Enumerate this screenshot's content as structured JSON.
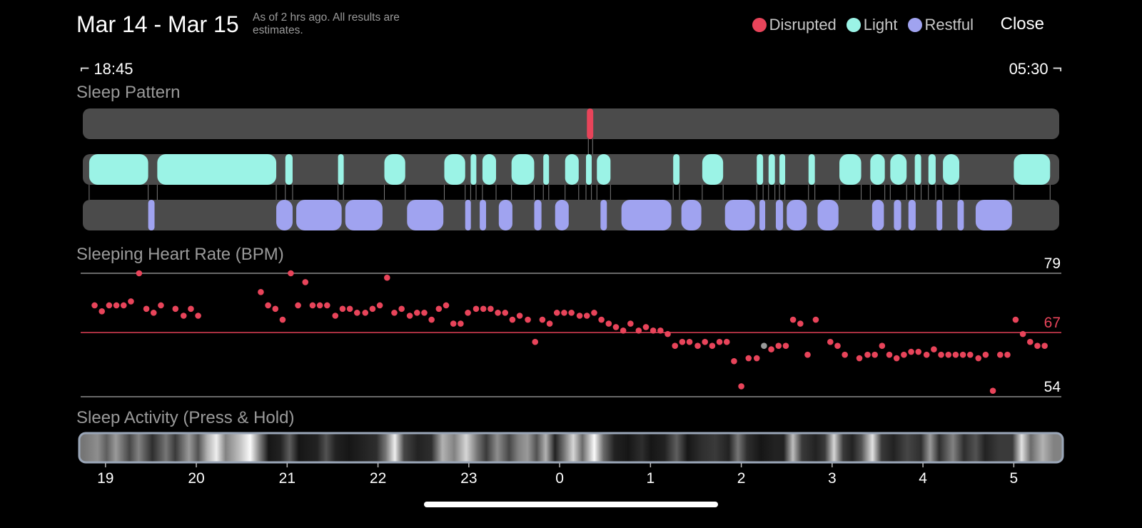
{
  "header": {
    "title": "Mar 14 - Mar 15",
    "subtitle": "As of 2 hrs ago. All results are estimates.",
    "close_label": "Close"
  },
  "legend": [
    {
      "label": "Disrupted",
      "color": "#e8445a"
    },
    {
      "label": "Light",
      "color": "#9bf3e6"
    },
    {
      "label": "Restful",
      "color": "#a0a3f0"
    }
  ],
  "time_range": {
    "start": "18:45",
    "end": "05:30"
  },
  "sections": {
    "sleep_pattern": "Sleep Pattern",
    "heart_rate": "Sleeping Heart Rate (BPM)",
    "activity": "Sleep Activity (Press & Hold)"
  },
  "colors": {
    "disrupted": "#e8445a",
    "light": "#9bf3e6",
    "restful": "#a0a3f0",
    "track": "#4b4b4b",
    "heart_point": "#e8445a",
    "selected_point": "#9a9a9a",
    "avg_line": "#d03b50"
  },
  "chart_data": {
    "type": "scatter",
    "title": "Sleeping Heart Rate (BPM)",
    "x_start_hour": 18.75,
    "x_end_hour": 29.5,
    "x_ticks": [
      "19",
      "20",
      "21",
      "22",
      "23",
      "0",
      "1",
      "2",
      "3",
      "4",
      "5"
    ],
    "x_tick_hours": [
      19,
      20,
      21,
      22,
      23,
      24,
      25,
      26,
      27,
      28,
      29
    ],
    "ylim": [
      54,
      79
    ],
    "reference_lines": [
      {
        "label": "79",
        "value": 79
      },
      {
        "label": "67",
        "value": 67,
        "role": "average"
      },
      {
        "label": "54",
        "value": 54
      }
    ],
    "selected_index": 82,
    "heart_rate": [
      [
        18.88,
        72.5
      ],
      [
        18.96,
        71.3
      ],
      [
        19.04,
        72.5
      ],
      [
        19.12,
        72.5
      ],
      [
        19.2,
        72.5
      ],
      [
        19.28,
        73.3
      ],
      [
        19.37,
        79
      ],
      [
        19.45,
        71.8
      ],
      [
        19.53,
        71
      ],
      [
        19.61,
        72.5
      ],
      [
        19.77,
        71.8
      ],
      [
        19.86,
        70.4
      ],
      [
        19.94,
        71.8
      ],
      [
        20.02,
        70.4
      ],
      [
        20.71,
        75.2
      ],
      [
        20.79,
        72.5
      ],
      [
        20.87,
        71.8
      ],
      [
        20.95,
        69.6
      ],
      [
        21.04,
        79
      ],
      [
        21.12,
        72.5
      ],
      [
        21.2,
        77.2
      ],
      [
        21.28,
        72.5
      ],
      [
        21.36,
        72.5
      ],
      [
        21.44,
        72.5
      ],
      [
        21.53,
        70.4
      ],
      [
        21.61,
        71.8
      ],
      [
        21.69,
        71.8
      ],
      [
        21.77,
        71
      ],
      [
        21.86,
        71
      ],
      [
        21.94,
        71.8
      ],
      [
        22.02,
        72.5
      ],
      [
        22.1,
        78.1
      ],
      [
        22.18,
        71
      ],
      [
        22.26,
        71.8
      ],
      [
        22.35,
        70.4
      ],
      [
        22.43,
        71
      ],
      [
        22.51,
        71
      ],
      [
        22.59,
        69.6
      ],
      [
        22.67,
        71.8
      ],
      [
        22.75,
        72.5
      ],
      [
        22.83,
        68.8
      ],
      [
        22.91,
        68.8
      ],
      [
        22.99,
        71
      ],
      [
        23.08,
        71.8
      ],
      [
        23.16,
        71.8
      ],
      [
        23.24,
        71.8
      ],
      [
        23.32,
        71
      ],
      [
        23.4,
        71
      ],
      [
        23.48,
        69.6
      ],
      [
        23.56,
        70.4
      ],
      [
        23.65,
        69.6
      ],
      [
        23.73,
        65.1
      ],
      [
        23.81,
        69.6
      ],
      [
        23.89,
        68.8
      ],
      [
        23.97,
        71
      ],
      [
        24.05,
        71
      ],
      [
        24.13,
        71
      ],
      [
        24.22,
        70.4
      ],
      [
        24.3,
        70.4
      ],
      [
        24.38,
        71
      ],
      [
        24.46,
        69.6
      ],
      [
        24.54,
        68.8
      ],
      [
        24.62,
        68.1
      ],
      [
        24.7,
        67.4
      ],
      [
        24.78,
        68.8
      ],
      [
        24.87,
        67.4
      ],
      [
        24.95,
        68.1
      ],
      [
        25.03,
        67.4
      ],
      [
        25.11,
        67.4
      ],
      [
        25.19,
        66.7
      ],
      [
        25.27,
        64.3
      ],
      [
        25.35,
        65.1
      ],
      [
        25.43,
        65.1
      ],
      [
        25.52,
        64.3
      ],
      [
        25.6,
        65.1
      ],
      [
        25.68,
        64.3
      ],
      [
        25.76,
        65.1
      ],
      [
        25.84,
        65.1
      ],
      [
        25.92,
        61.2
      ],
      [
        26.0,
        56.1
      ],
      [
        26.08,
        61.8
      ],
      [
        26.17,
        61.8
      ],
      [
        26.25,
        64.3
      ],
      [
        26.33,
        63.6
      ],
      [
        26.41,
        64.3
      ],
      [
        26.49,
        64.3
      ],
      [
        26.57,
        69.6
      ],
      [
        26.65,
        68.8
      ],
      [
        26.73,
        62.5
      ],
      [
        26.82,
        69.6
      ],
      [
        26.98,
        65.1
      ],
      [
        27.06,
        64.3
      ],
      [
        27.14,
        62.5
      ],
      [
        27.3,
        61.8
      ],
      [
        27.39,
        62.5
      ],
      [
        27.47,
        62.5
      ],
      [
        27.55,
        64.3
      ],
      [
        27.63,
        62.5
      ],
      [
        27.71,
        61.8
      ],
      [
        27.79,
        62.5
      ],
      [
        27.87,
        63.1
      ],
      [
        27.95,
        63.1
      ],
      [
        28.04,
        62.5
      ],
      [
        28.12,
        63.6
      ],
      [
        28.2,
        62.5
      ],
      [
        28.28,
        62.5
      ],
      [
        28.36,
        62.5
      ],
      [
        28.44,
        62.5
      ],
      [
        28.52,
        62.5
      ],
      [
        28.61,
        61.8
      ],
      [
        28.69,
        62.5
      ],
      [
        28.77,
        55.2
      ],
      [
        28.85,
        62.5
      ],
      [
        28.93,
        62.5
      ],
      [
        29.02,
        69.6
      ],
      [
        29.1,
        66.7
      ],
      [
        29.18,
        65.1
      ],
      [
        29.26,
        64.3
      ],
      [
        29.34,
        64.3
      ]
    ]
  },
  "sleep_pattern": {
    "disrupted": [
      [
        24.3,
        24.37
      ]
    ],
    "light": [
      [
        18.82,
        19.47
      ],
      [
        19.57,
        20.88
      ],
      [
        20.98,
        21.06
      ],
      [
        21.56,
        21.62
      ],
      [
        22.07,
        22.3
      ],
      [
        22.73,
        22.96
      ],
      [
        23.02,
        23.08
      ],
      [
        23.15,
        23.3
      ],
      [
        23.47,
        23.72
      ],
      [
        23.82,
        23.88
      ],
      [
        24.06,
        24.21
      ],
      [
        24.29,
        24.35
      ],
      [
        24.41,
        24.56
      ],
      [
        25.25,
        25.32
      ],
      [
        25.57,
        25.8
      ],
      [
        26.17,
        26.24
      ],
      [
        26.3,
        26.37
      ],
      [
        26.42,
        26.48
      ],
      [
        26.74,
        26.81
      ],
      [
        27.08,
        27.32
      ],
      [
        27.42,
        27.58
      ],
      [
        27.64,
        27.82
      ],
      [
        27.91,
        27.98
      ],
      [
        28.06,
        28.14
      ],
      [
        28.22,
        28.4
      ],
      [
        29.0,
        29.4
      ]
    ],
    "restful": [
      [
        19.47,
        19.54
      ],
      [
        20.88,
        21.06
      ],
      [
        21.1,
        21.6
      ],
      [
        21.64,
        22.05
      ],
      [
        22.32,
        22.72
      ],
      [
        22.96,
        23.02
      ],
      [
        23.12,
        23.19
      ],
      [
        23.33,
        23.48
      ],
      [
        23.72,
        23.8
      ],
      [
        23.95,
        24.1
      ],
      [
        24.45,
        24.52
      ],
      [
        24.68,
        25.23
      ],
      [
        25.34,
        25.56
      ],
      [
        25.82,
        26.15
      ],
      [
        26.2,
        26.26
      ],
      [
        26.38,
        26.46
      ],
      [
        26.5,
        26.72
      ],
      [
        26.84,
        27.07
      ],
      [
        27.44,
        27.57
      ],
      [
        27.68,
        27.76
      ],
      [
        27.84,
        27.92
      ],
      [
        28.15,
        28.2
      ],
      [
        28.38,
        28.45
      ],
      [
        28.58,
        28.98
      ]
    ]
  },
  "activity": {
    "levels": [
      [
        18.8,
        0.45
      ],
      [
        18.95,
        0.55
      ],
      [
        19.05,
        0.35
      ],
      [
        19.15,
        0.6
      ],
      [
        19.3,
        0.25
      ],
      [
        19.4,
        0.5
      ],
      [
        19.55,
        0.15
      ],
      [
        19.7,
        0.45
      ],
      [
        19.8,
        0.2
      ],
      [
        19.95,
        0.6
      ],
      [
        20.05,
        0.3
      ],
      [
        20.15,
        0.7
      ],
      [
        20.25,
        0.95
      ],
      [
        20.35,
        0.5
      ],
      [
        20.5,
        0.75
      ],
      [
        20.62,
        1.0
      ],
      [
        20.72,
        0.5
      ],
      [
        20.82,
        0.05
      ],
      [
        20.95,
        0.1
      ],
      [
        21.05,
        0.35
      ],
      [
        21.15,
        0.05
      ],
      [
        21.35,
        0.1
      ],
      [
        21.45,
        0.3
      ],
      [
        21.55,
        0.1
      ],
      [
        21.7,
        0.05
      ],
      [
        21.85,
        0.1
      ],
      [
        22.0,
        0.15
      ],
      [
        22.1,
        0.45
      ],
      [
        22.2,
        0.95
      ],
      [
        22.3,
        0.25
      ],
      [
        22.45,
        0.1
      ],
      [
        22.6,
        0.15
      ],
      [
        22.72,
        0.7
      ],
      [
        22.85,
        0.5
      ],
      [
        22.98,
        0.85
      ],
      [
        23.1,
        0.45
      ],
      [
        23.2,
        0.2
      ],
      [
        23.32,
        0.55
      ],
      [
        23.45,
        0.25
      ],
      [
        23.55,
        0.5
      ],
      [
        23.65,
        0.6
      ],
      [
        23.75,
        0.3
      ],
      [
        23.85,
        0.7
      ],
      [
        23.95,
        0.1
      ],
      [
        24.05,
        0.45
      ],
      [
        24.15,
        0.85
      ],
      [
        24.25,
        0.4
      ],
      [
        24.38,
        1.0
      ],
      [
        24.48,
        0.4
      ],
      [
        24.6,
        0.1
      ],
      [
        24.75,
        0.05
      ],
      [
        24.9,
        0.15
      ],
      [
        25.0,
        0.05
      ],
      [
        25.15,
        0.1
      ],
      [
        25.28,
        0.35
      ],
      [
        25.4,
        0.05
      ],
      [
        25.55,
        0.15
      ],
      [
        25.7,
        0.2
      ],
      [
        25.85,
        0.1
      ],
      [
        25.95,
        0.45
      ],
      [
        26.05,
        0.15
      ],
      [
        26.2,
        0.05
      ],
      [
        26.35,
        0.1
      ],
      [
        26.45,
        0.1
      ],
      [
        26.55,
        0.75
      ],
      [
        26.65,
        0.2
      ],
      [
        26.8,
        0.1
      ],
      [
        26.9,
        0.2
      ],
      [
        27.0,
        0.85
      ],
      [
        27.1,
        0.2
      ],
      [
        27.2,
        0.1
      ],
      [
        27.3,
        0.3
      ],
      [
        27.42,
        0.9
      ],
      [
        27.52,
        0.2
      ],
      [
        27.65,
        0.1
      ],
      [
        27.8,
        0.25
      ],
      [
        27.95,
        0.15
      ],
      [
        28.05,
        0.6
      ],
      [
        28.15,
        0.15
      ],
      [
        28.3,
        0.5
      ],
      [
        28.42,
        0.15
      ],
      [
        28.55,
        0.3
      ],
      [
        28.65,
        0.1
      ],
      [
        28.8,
        0.2
      ],
      [
        28.95,
        0.2
      ],
      [
        29.05,
        0.9
      ],
      [
        29.15,
        0.4
      ],
      [
        29.28,
        0.7
      ],
      [
        29.4,
        0.5
      ]
    ]
  }
}
